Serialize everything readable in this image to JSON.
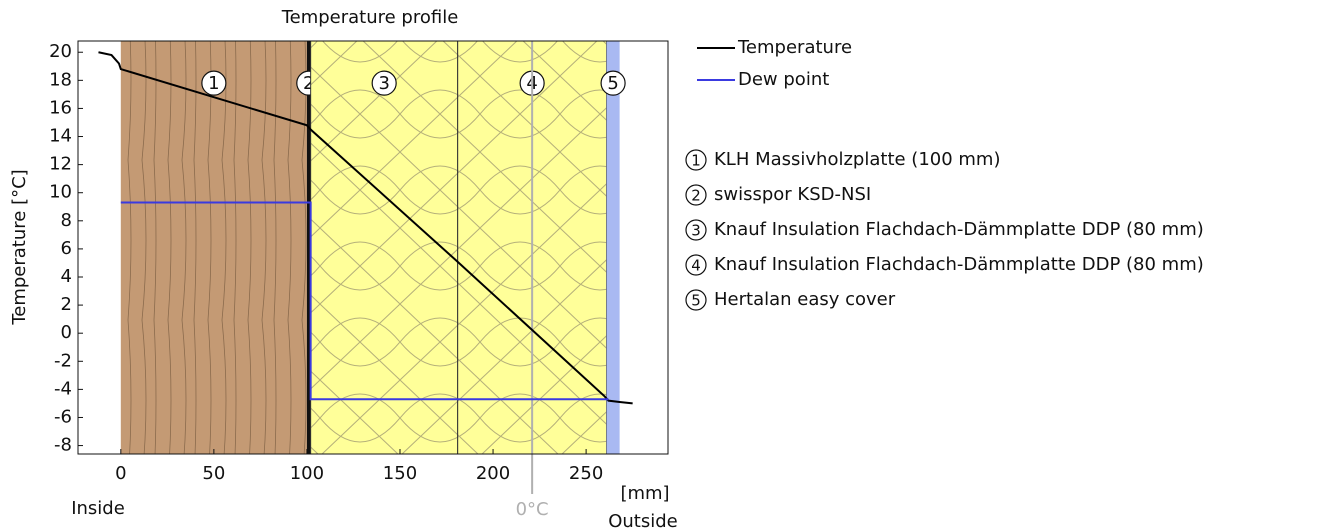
{
  "chart_data": {
    "type": "line",
    "title": "Temperature profile",
    "y_label": "Temperature  [°C]",
    "x_unit": "[mm]",
    "inside_label": "Inside",
    "outside_label": "Outside",
    "xlim": [
      -23,
      294
    ],
    "ylim": [
      -8.6,
      20.8
    ],
    "xticks": [
      0,
      50,
      100,
      150,
      200,
      250
    ],
    "yticks": [
      20,
      18,
      16,
      14,
      12,
      10,
      8,
      6,
      4,
      2,
      0,
      -2,
      -4,
      -6,
      -8
    ],
    "freezing_point": {
      "x": 221,
      "label": "0°C",
      "color": "#b0b0b0"
    },
    "layers": [
      {
        "number": "1",
        "name": "KLH Massivholzplatte (100 mm)",
        "start": 0,
        "end": 100,
        "color": "#c49a74"
      },
      {
        "number": "2",
        "name": "swisspor KSD-NSI",
        "start": 100,
        "end": 102,
        "color": "#111111"
      },
      {
        "number": "3",
        "name": "Knauf Insulation Flachdach-Dämmplatte DDP (80 mm)",
        "start": 102,
        "end": 181,
        "color": "#ffff99"
      },
      {
        "number": "4",
        "name": "Knauf Insulation Flachdach-Dämmplatte DDP (80 mm)",
        "start": 181,
        "end": 261,
        "color": "#ffff99"
      },
      {
        "number": "5",
        "name": "Hertalan easy cover",
        "start": 261,
        "end": 268,
        "color": "#a9b9f2"
      }
    ],
    "series": [
      {
        "name": "Temperature",
        "color": "#000000",
        "x": [
          -12,
          -5,
          -1,
          0,
          100,
          102,
          180,
          260,
          262,
          268,
          275
        ],
        "values": [
          20,
          19.8,
          19.2,
          18.8,
          14.8,
          14.5,
          5.2,
          -4.5,
          -4.8,
          -4.9,
          -5.0
        ]
      },
      {
        "name": "Dew point",
        "color": "#3a3ae0",
        "x": [
          0,
          102,
          102,
          262
        ],
        "values": [
          9.3,
          9.3,
          -4.7,
          -4.7
        ]
      }
    ]
  }
}
